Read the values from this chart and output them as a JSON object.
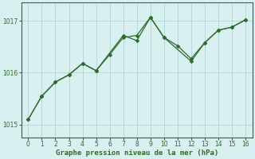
{
  "series1_x": [
    0,
    1,
    2,
    3,
    4,
    5,
    6,
    7,
    8,
    9,
    10,
    11,
    12,
    13,
    14,
    15,
    16
  ],
  "series1_y": [
    1015.1,
    1015.55,
    1015.82,
    1015.96,
    1016.18,
    1016.04,
    1016.35,
    1016.68,
    1016.72,
    1017.07,
    1016.68,
    1016.52,
    1016.27,
    1016.58,
    1016.82,
    1016.88,
    1017.02
  ],
  "series2_x": [
    0,
    1,
    2,
    3,
    4,
    5,
    7,
    8,
    9,
    10,
    12,
    13,
    14,
    15,
    16
  ],
  "series2_y": [
    1015.1,
    1015.55,
    1015.82,
    1015.96,
    1016.18,
    1016.04,
    1016.72,
    1016.62,
    1017.07,
    1016.68,
    1016.22,
    1016.58,
    1016.82,
    1016.88,
    1017.02
  ],
  "line_color": "#2d6a2d",
  "marker_color": "#2d6a2d",
  "bg_color": "#d8f0f0",
  "grid_color": "#b0d4d4",
  "axis_color": "#2d6a2d",
  "tick_color": "#2d6a2d",
  "xlabel": "Graphe pression niveau de la mer (hPa)",
  "ylim_min": 1014.75,
  "ylim_max": 1017.35,
  "yticks": [
    1015,
    1016,
    1017
  ],
  "xticks": [
    0,
    1,
    2,
    3,
    4,
    5,
    6,
    7,
    8,
    9,
    10,
    11,
    12,
    13,
    14,
    15,
    16
  ]
}
